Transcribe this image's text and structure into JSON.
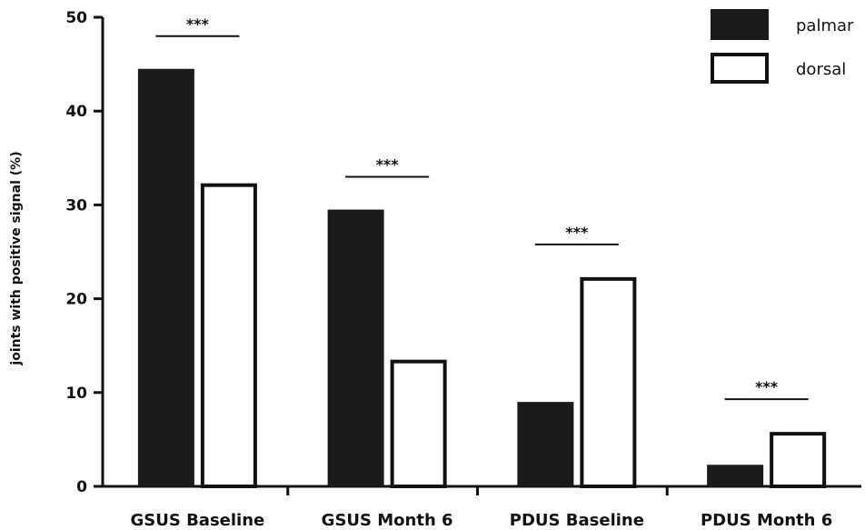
{
  "chart_data": {
    "type": "bar",
    "title": "",
    "xlabel": "",
    "ylabel": "joints with positive signal (%)",
    "ylim": [
      0,
      50
    ],
    "yticks": [
      0,
      10,
      20,
      30,
      40,
      50
    ],
    "grid": false,
    "legend_position": "top-right",
    "categories": [
      "GSUS Baseline",
      "GSUS Month 6",
      "PDUS Baseline",
      "PDUS Month 6"
    ],
    "series": [
      {
        "name": "palmar",
        "values": [
          44.5,
          29.5,
          9,
          2.3
        ],
        "color": "#1a1a1a",
        "style": "filled"
      },
      {
        "name": "dorsal",
        "values": [
          32.3,
          13.5,
          22.3,
          5.8
        ],
        "color": "#ffffff",
        "style": "outline"
      }
    ],
    "annotations": [
      "***",
      "***",
      "***",
      "***"
    ]
  }
}
